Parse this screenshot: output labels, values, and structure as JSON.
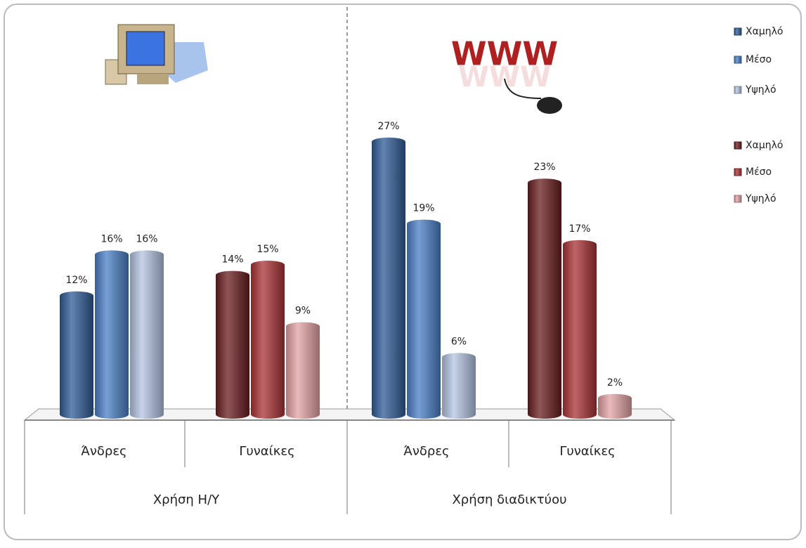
{
  "chart_data": {
    "type": "bar",
    "categories": [
      "Άνδρες",
      "Γυναίκες",
      "Άνδρες",
      "Γυναίκες"
    ],
    "group_labels": [
      "Χρήση Η/Υ",
      "Χρήση διαδικτύου"
    ],
    "series": [
      {
        "name": "Χαμηλό",
        "color": "#2f5b96",
        "values": [
          12,
          null,
          27,
          null
        ],
        "value_labels": [
          "12%",
          null,
          "27%",
          null
        ]
      },
      {
        "name": "Μέσο",
        "color": "#4a7fc6",
        "values": [
          16,
          null,
          19,
          null
        ],
        "value_labels": [
          "16%",
          null,
          "19%",
          null
        ]
      },
      {
        "name": "Υψηλό",
        "color": "#b4c4e2",
        "values": [
          16,
          null,
          6,
          null
        ],
        "value_labels": [
          "16%",
          null,
          "6%",
          null
        ]
      },
      {
        "name": "Χαμηλό",
        "color": "#6a1d1f",
        "values": [
          null,
          14,
          null,
          23
        ],
        "value_labels": [
          null,
          "14%",
          null,
          "23%"
        ]
      },
      {
        "name": "Μέσο",
        "color": "#a93234",
        "values": [
          null,
          15,
          null,
          17
        ],
        "value_labels": [
          null,
          "15%",
          null,
          "17%"
        ]
      },
      {
        "name": "Υψηλό",
        "color": "#e3a3a4",
        "values": [
          null,
          9,
          null,
          2
        ],
        "value_labels": [
          null,
          "9%",
          null,
          "2%"
        ]
      }
    ]
  }
}
